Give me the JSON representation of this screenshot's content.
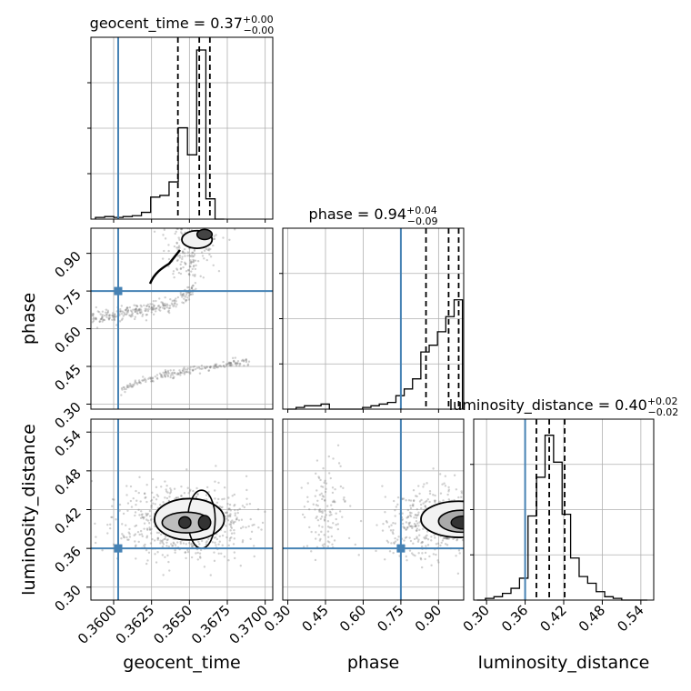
{
  "chart_data": {
    "type": "corner",
    "grid": true,
    "truth_color": "#4682b4",
    "truth": {
      "geocent_time": 0.3603,
      "phase": 0.75,
      "luminosity_distance": 0.36
    },
    "parameters": [
      {
        "name": "geocent_time",
        "axis_label": "geocent_time",
        "title_base": "geocent_time = 0.37",
        "title_plus": "+0.00",
        "title_minus": "−0.00",
        "range": [
          0.3585,
          0.3705
        ],
        "ticks": [
          0.36,
          0.3625,
          0.365,
          0.3675,
          0.37
        ],
        "tick_labels": [
          "0.3600",
          "0.3625",
          "0.3650",
          "0.3675",
          "0.3700"
        ],
        "quantiles": [
          0.36424,
          0.36565,
          0.36635
        ],
        "hist": [
          0.01,
          0.015,
          0.01,
          0.015,
          0.02,
          0.04,
          0.13,
          0.14,
          0.22,
          0.54,
          0.38,
          1.0,
          0.12,
          0
        ]
      },
      {
        "name": "phase",
        "axis_label": "phase",
        "title_base": "phase = 0.94",
        "title_plus": "+0.04",
        "title_minus": "−0.09",
        "range": [
          0.28,
          1.0
        ],
        "ticks": [
          0.3,
          0.45,
          0.6,
          0.75,
          0.9
        ],
        "tick_labels": [
          "0.30",
          "0.45",
          "0.60",
          "0.75",
          "0.90"
        ],
        "quantiles": [
          0.85,
          0.94,
          0.98
        ],
        "hist": [
          0.0,
          0.01,
          0.02,
          0.02,
          0.03,
          0.0,
          0.0,
          0.0,
          0.0,
          0.01,
          0.02,
          0.03,
          0.04,
          0.08,
          0.12,
          0.18,
          0.34,
          0.38,
          0.46,
          0.55,
          0.65
        ]
      },
      {
        "name": "luminosity_distance",
        "axis_label": "luminosity_distance",
        "title_base": "luminosity_distance = 0.40",
        "title_plus": "+0.02",
        "title_minus": "−0.02",
        "range": [
          0.28,
          0.56
        ],
        "ticks": [
          0.3,
          0.36,
          0.42,
          0.48,
          0.54
        ],
        "tick_labels": [
          "0.30",
          "0.36",
          "0.42",
          "0.48",
          "0.54"
        ],
        "quantiles": [
          0.3775,
          0.3975,
          0.4215
        ],
        "hist": [
          0.0,
          0.01,
          0.02,
          0.04,
          0.07,
          0.13,
          0.5,
          0.73,
          0.98,
          0.82,
          0.51,
          0.25,
          0.14,
          0.1,
          0.05,
          0.02,
          0.01,
          0.0,
          0.0,
          0.0
        ]
      }
    ]
  }
}
